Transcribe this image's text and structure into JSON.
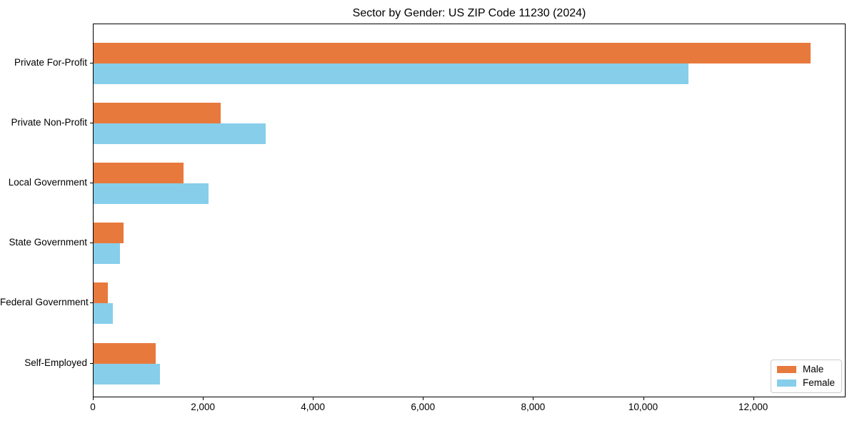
{
  "chart_data": {
    "type": "bar",
    "orientation": "horizontal",
    "title": "Sector by Gender: US ZIP Code 11230 (2024)",
    "categories": [
      "Private For-Profit",
      "Private Non-Profit",
      "Local Government",
      "State Government",
      "Federal Government",
      "Self-Employed"
    ],
    "series": [
      {
        "name": "Male",
        "color": "#e8793d",
        "values": [
          13025,
          2315,
          1640,
          545,
          260,
          1130
        ]
      },
      {
        "name": "Female",
        "color": "#87ceeb",
        "values": [
          10815,
          3130,
          2095,
          480,
          350,
          1210
        ]
      }
    ],
    "xlabel": "",
    "ylabel": "",
    "xlim": [
      0,
      13680
    ],
    "x_ticks": [
      {
        "value": 0,
        "label": "0"
      },
      {
        "value": 2000,
        "label": "2,000"
      },
      {
        "value": 4000,
        "label": "4,000"
      },
      {
        "value": 6000,
        "label": "6,000"
      },
      {
        "value": 8000,
        "label": "8,000"
      },
      {
        "value": 10000,
        "label": "10,000"
      },
      {
        "value": 12000,
        "label": "12,000"
      }
    ],
    "grid": false,
    "legend_position": "lower right"
  },
  "colors": {
    "male": "#e8793d",
    "female": "#87ceeb",
    "spine": "#000000",
    "legend_border": "#cccccc"
  }
}
